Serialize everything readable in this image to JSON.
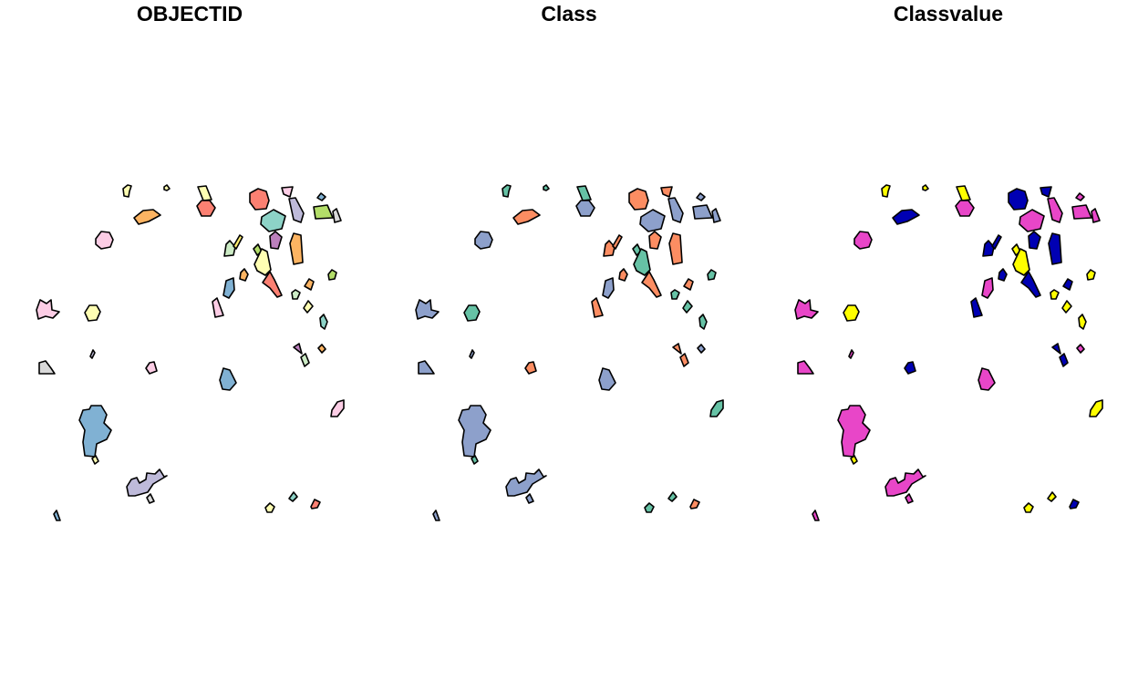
{
  "panels": [
    {
      "title": "OBJECTID",
      "colors": {
        "p01": "#ffffb3",
        "p02": "#ffffb3",
        "p03": "#fdb462",
        "p04": "#fccde5",
        "p05": "#ffffb3",
        "p06": "#fb8072",
        "p07": "#fb8072",
        "p08": "#fccde5",
        "p09": "#80b1d3",
        "p10": "#8dd3c7",
        "p11": "#bebada",
        "p12": "#b3de69",
        "p13": "#d9d9d9",
        "p14": "#ccebc5",
        "p15": "#ffed6f",
        "p16": "#bc80bd",
        "p17": "#fdb462",
        "p18": "#b3de69",
        "p19": "#ffffb3",
        "p20": "#fb8072",
        "p21": "#fdb462",
        "p22": "#80b1d3",
        "p23": "#fccde5",
        "p24": "#ccebc5",
        "p25": "#fdb462",
        "p26": "#b3de69",
        "p27": "#ffffb3",
        "p28": "#8dd3c7",
        "p29": "#fccde5",
        "p30": "#ffffb3",
        "p31": "#d9d9d9",
        "p32": "#bebada",
        "p33": "#fccde5",
        "p34": "#bc80bd",
        "p35": "#fdb462",
        "p36": "#ccebc5",
        "p37": "#80b1d3",
        "p38": "#fccde5",
        "p39": "#ffffb3",
        "p40": "#80b1d3",
        "p41": "#bebada",
        "p42": "#d9d9d9",
        "p43": "#80b1d3",
        "p44": "#ffffb3",
        "p45": "#8dd3c7",
        "p46": "#fb8072",
        "p47": "#ffffb3",
        "p48": "#bebada",
        "p49": "#8dd3c7",
        "p50": "#fdb462"
      }
    },
    {
      "title": "Class",
      "colors": {
        "p01": "#66c2a5",
        "p02": "#66c2a5",
        "p03": "#fc8d62",
        "p04": "#8da0cb",
        "p05": "#66c2a5",
        "p06": "#8da0cb",
        "p07": "#fc8d62",
        "p08": "#fc8d62",
        "p09": "#8da0cb",
        "p10": "#8da0cb",
        "p11": "#8da0cb",
        "p12": "#8da0cb",
        "p13": "#8da0cb",
        "p14": "#fc8d62",
        "p15": "#fc8d62",
        "p16": "#fc8d62",
        "p17": "#fc8d62",
        "p18": "#66c2a5",
        "p19": "#66c2a5",
        "p20": "#fc8d62",
        "p21": "#fc8d62",
        "p22": "#8da0cb",
        "p23": "#fc8d62",
        "p24": "#66c2a5",
        "p25": "#fc8d62",
        "p26": "#66c2a5",
        "p27": "#66c2a5",
        "p28": "#66c2a5",
        "p29": "#8da0cb",
        "p30": "#66c2a5",
        "p31": "#8da0cb",
        "p32": "#8da0cb",
        "p33": "#fc8d62",
        "p34": "#fc8d62",
        "p35": "#8da0cb",
        "p36": "#fc8d62",
        "p37": "#8da0cb",
        "p38": "#66c2a5",
        "p39": "#66c2a5",
        "p40": "#8da0cb",
        "p41": "#8da0cb",
        "p42": "#8da0cb",
        "p43": "#8da0cb",
        "p44": "#66c2a5",
        "p45": "#66c2a5",
        "p46": "#fc8d62",
        "p47": "#66c2a5",
        "p48": "#8da0cb",
        "p49": "#66c2a5",
        "p50": "#66c2a5"
      }
    },
    {
      "title": "Classvalue",
      "colors": {
        "p01": "#ffff00",
        "p02": "#ffff00",
        "p03": "#0000b3",
        "p04": "#e846c8",
        "p05": "#ffff00",
        "p06": "#e846c8",
        "p07": "#0000b3",
        "p08": "#0000b3",
        "p09": "#e846c8",
        "p10": "#e846c8",
        "p11": "#e846c8",
        "p12": "#e846c8",
        "p13": "#e846c8",
        "p14": "#0000b3",
        "p15": "#0000b3",
        "p16": "#0000b3",
        "p17": "#0000b3",
        "p18": "#ffff00",
        "p19": "#ffff00",
        "p20": "#0000b3",
        "p21": "#0000b3",
        "p22": "#e846c8",
        "p23": "#0000b3",
        "p24": "#ffff00",
        "p25": "#0000b3",
        "p26": "#ffff00",
        "p27": "#ffff00",
        "p28": "#ffff00",
        "p29": "#e846c8",
        "p30": "#ffff00",
        "p31": "#e846c8",
        "p32": "#e846c8",
        "p33": "#0000b3",
        "p34": "#0000b3",
        "p35": "#e846c8",
        "p36": "#0000b3",
        "p37": "#e846c8",
        "p38": "#ffff00",
        "p39": "#ffff00",
        "p40": "#e846c8",
        "p41": "#e846c8",
        "p42": "#e846c8",
        "p43": "#e846c8",
        "p44": "#ffff00",
        "p45": "#ffff00",
        "p46": "#0000b3",
        "p47": "#ffff00",
        "p48": "#e846c8",
        "p49": "#ffff00",
        "p50": "#ffff00"
      }
    }
  ]
}
